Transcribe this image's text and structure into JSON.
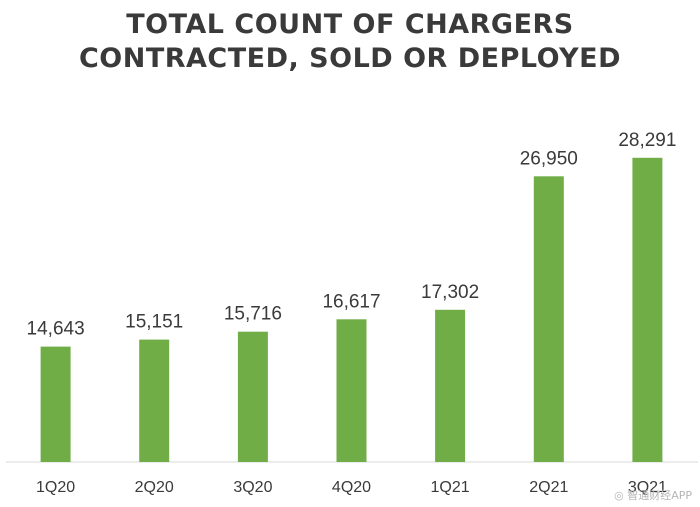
{
  "chart_data": {
    "type": "bar",
    "title_lines": [
      "TOTAL COUNT OF CHARGERS",
      "CONTRACTED, SOLD OR DEPLOYED"
    ],
    "categories": [
      "1Q20",
      "2Q20",
      "3Q20",
      "4Q20",
      "1Q21",
      "2Q21",
      "3Q21"
    ],
    "values": [
      14643,
      15151,
      15716,
      16617,
      17302,
      26950,
      28291
    ],
    "value_labels": [
      "14,643",
      "15,151",
      "15,716",
      "16,617",
      "17,302",
      "26,950",
      "28,291"
    ],
    "xlabel": "",
    "ylabel": "",
    "ylim": [
      6300,
      30300
    ],
    "grid": false,
    "bar_color": "#70ad47"
  },
  "watermark": "◎ 智通财经APP"
}
